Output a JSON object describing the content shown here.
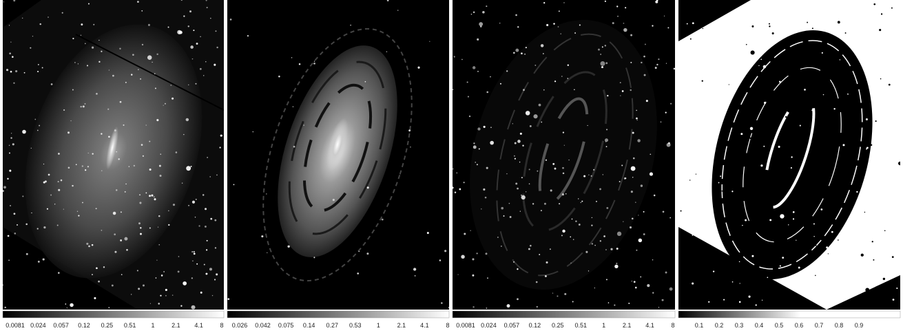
{
  "panels": [
    {
      "colorbar": {
        "ticks": [
          "0.0081",
          "0.024",
          "0.057",
          "0.12",
          "0.25",
          "0.51",
          "1",
          "2.1",
          "4.1",
          "8"
        ]
      }
    },
    {
      "colorbar": {
        "ticks": [
          "0.026",
          "0.042",
          "0.075",
          "0.14",
          "0.27",
          "0.53",
          "1",
          "2.1",
          "4.1",
          "8"
        ]
      }
    },
    {
      "colorbar": {
        "ticks": [
          "0.0081",
          "0.024",
          "0.057",
          "0.12",
          "0.25",
          "0.51",
          "1",
          "2.1",
          "4.1",
          "8"
        ]
      }
    },
    {
      "colorbar": {
        "ticks": [
          "0.1",
          "0.2",
          "0.3",
          "0.4",
          "0.5",
          "0.6",
          "0.7",
          "0.8",
          "0.9"
        ]
      }
    }
  ]
}
